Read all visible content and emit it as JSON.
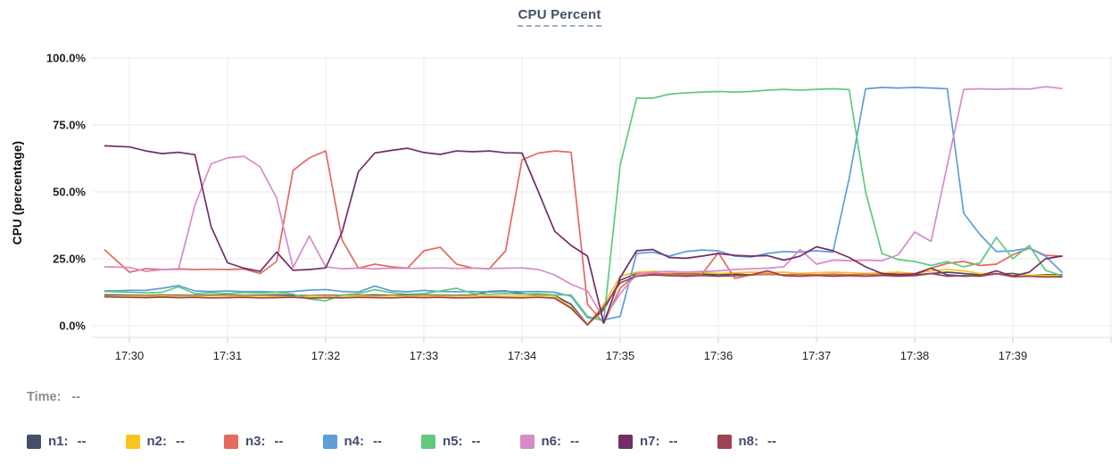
{
  "header": {
    "title": "CPU Percent",
    "time_label": "Time:",
    "time_value": "--"
  },
  "chart_data": {
    "type": "line",
    "title": "CPU Percent",
    "xlabel": "",
    "ylabel": "CPU (percentage)",
    "ylim": [
      0,
      100
    ],
    "grid": true,
    "legend_position": "bottom",
    "y_ticks": [
      {
        "value": 0,
        "label": "0.0%"
      },
      {
        "value": 25,
        "label": "25.0%"
      },
      {
        "value": 50,
        "label": "50.0%"
      },
      {
        "value": 75,
        "label": "75.0%"
      },
      {
        "value": 100,
        "label": "100.0%"
      }
    ],
    "x_ticks": [
      "17:30",
      "17:31",
      "17:32",
      "17:33",
      "17:34",
      "17:35",
      "17:36",
      "17:37",
      "17:38",
      "17:39"
    ],
    "x_offset_minutes_from_1730": [
      -0.25,
      0,
      0.167,
      0.333,
      0.5,
      0.667,
      0.833,
      1,
      1.167,
      1.333,
      1.5,
      1.667,
      1.833,
      2,
      2.167,
      2.333,
      2.5,
      2.667,
      2.833,
      3,
      3.167,
      3.333,
      3.5,
      3.667,
      3.833,
      4,
      4.167,
      4.333,
      4.5,
      4.667,
      4.833,
      5,
      5.167,
      5.333,
      5.5,
      5.667,
      5.833,
      6,
      6.167,
      6.333,
      6.5,
      6.667,
      6.833,
      7,
      7.167,
      7.333,
      7.5,
      7.667,
      7.833,
      8,
      8.167,
      8.333,
      8.5,
      8.667,
      8.833,
      9,
      9.167,
      9.333,
      9.5
    ],
    "series": [
      {
        "name": "n1",
        "label": "n1:",
        "legend_value": "--",
        "color": "#44506b",
        "values": [
          11.5,
          11.4,
          11.3,
          11.5,
          11.4,
          11.3,
          11.4,
          11.5,
          11.3,
          11.4,
          11.5,
          11.3,
          11.2,
          11.4,
          11.3,
          11.4,
          11.5,
          11.3,
          11.4,
          11.5,
          11.4,
          11.3,
          11.5,
          12.8,
          13.0,
          12.0,
          11.5,
          11.3,
          8.0,
          0.5,
          6.0,
          17.0,
          19.5,
          19.5,
          19.3,
          19.5,
          19.3,
          19.0,
          19.3,
          19.0,
          19.2,
          19.0,
          19.3,
          19.0,
          19.2,
          19.0,
          19.3,
          19.5,
          19.3,
          19.0,
          19.5,
          20.0,
          19.5,
          19.0,
          19.3,
          19.5,
          18.7,
          19.0,
          19.0
        ]
      },
      {
        "name": "n2",
        "label": "n2:",
        "legend_value": "--",
        "color": "#f8c51c",
        "values": [
          11.0,
          11.1,
          11.0,
          11.2,
          11.1,
          11.0,
          11.1,
          11.2,
          11.0,
          11.1,
          11.0,
          10.8,
          11.0,
          11.1,
          11.0,
          11.2,
          11.0,
          11.1,
          11.0,
          11.2,
          11.1,
          11.0,
          11.2,
          11.0,
          11.1,
          11.0,
          11.2,
          11.0,
          7.0,
          0.5,
          8.0,
          18.5,
          20.0,
          20.3,
          20.0,
          19.8,
          20.0,
          19.5,
          19.8,
          20.0,
          19.8,
          20.0,
          19.5,
          19.8,
          20.0,
          19.8,
          19.5,
          19.8,
          20.0,
          19.5,
          20.5,
          21.0,
          20.5,
          19.5,
          19.3,
          19.0,
          18.8,
          18.7,
          18.7
        ]
      },
      {
        "name": "n3",
        "label": "n3:",
        "legend_value": "--",
        "color": "#e4695e",
        "values": [
          28.3,
          20.0,
          21.3,
          21.0,
          21.2,
          21.0,
          21.1,
          21.0,
          21.2,
          19.5,
          24.0,
          58.0,
          62.7,
          65.3,
          32.0,
          21.5,
          23.0,
          22.0,
          21.5,
          28.0,
          29.3,
          23.0,
          21.5,
          21.3,
          28.0,
          62.0,
          64.5,
          65.3,
          64.8,
          8.0,
          1.0,
          14.0,
          19.3,
          19.5,
          19.3,
          19.0,
          19.2,
          27.3,
          17.7,
          19.0,
          19.3,
          19.0,
          19.2,
          19.0,
          19.3,
          19.0,
          19.2,
          19.0,
          19.3,
          19.5,
          21.5,
          23.3,
          24.0,
          22.5,
          23.0,
          26.5,
          29.0,
          26.3,
          26.0
        ]
      },
      {
        "name": "n4",
        "label": "n4:",
        "legend_value": "--",
        "color": "#5f9ed7",
        "values": [
          13.0,
          13.2,
          13.2,
          14.0,
          15.0,
          13.0,
          12.8,
          13.0,
          12.7,
          12.8,
          12.6,
          12.8,
          13.3,
          13.5,
          12.8,
          12.6,
          14.8,
          13.0,
          12.7,
          13.2,
          12.8,
          12.7,
          12.8,
          12.6,
          12.8,
          12.7,
          12.8,
          12.5,
          11.0,
          3.0,
          2.2,
          3.5,
          27.0,
          27.5,
          26.0,
          27.7,
          28.3,
          28.0,
          26.0,
          25.7,
          27.0,
          27.7,
          27.5,
          28.0,
          27.5,
          55.0,
          88.5,
          89.0,
          88.8,
          89.0,
          88.8,
          88.5,
          42.0,
          34.0,
          27.7,
          28.0,
          29.0,
          26.0,
          20.0
        ]
      },
      {
        "name": "n5",
        "label": "n5:",
        "legend_value": "--",
        "color": "#62c87f",
        "values": [
          12.8,
          12.5,
          12.3,
          12.5,
          14.5,
          12.0,
          12.3,
          12.0,
          12.4,
          12.2,
          12.5,
          11.8,
          10.0,
          9.3,
          11.5,
          12.0,
          13.5,
          12.3,
          11.8,
          12.0,
          13.0,
          14.0,
          12.0,
          11.7,
          12.0,
          11.8,
          12.0,
          11.5,
          11.5,
          3.5,
          1.8,
          60.0,
          85.0,
          85.0,
          86.5,
          87.0,
          87.3,
          87.5,
          87.3,
          87.5,
          88.0,
          88.3,
          88.0,
          88.3,
          88.5,
          88.2,
          50.0,
          27.0,
          24.7,
          24.0,
          22.5,
          24.0,
          22.0,
          23.5,
          33.0,
          25.0,
          30.0,
          20.7,
          18.7
        ]
      },
      {
        "name": "n6",
        "label": "n6:",
        "legend_value": "--",
        "color": "#d78bc7",
        "values": [
          22.0,
          21.8,
          20.3,
          21.0,
          21.0,
          45.0,
          60.5,
          62.7,
          63.3,
          59.3,
          47.7,
          21.7,
          33.5,
          22.0,
          21.3,
          21.5,
          21.3,
          21.5,
          21.4,
          21.5,
          21.6,
          21.4,
          21.5,
          21.4,
          21.5,
          21.6,
          21.0,
          19.0,
          15.5,
          13.0,
          2.5,
          12.0,
          19.3,
          20.0,
          20.3,
          20.0,
          20.3,
          20.5,
          21.0,
          21.3,
          21.5,
          22.0,
          28.5,
          23.0,
          24.5,
          24.3,
          24.5,
          24.3,
          26.5,
          35.0,
          31.5,
          60.0,
          88.3,
          88.5,
          88.3,
          88.5,
          88.4,
          89.3,
          88.6
        ]
      },
      {
        "name": "n7",
        "label": "n7:",
        "legend_value": "--",
        "color": "#722f68",
        "values": [
          67.2,
          66.8,
          65.3,
          64.3,
          64.8,
          63.9,
          37.0,
          23.5,
          21.5,
          20.3,
          27.5,
          20.7,
          21.0,
          21.6,
          35.0,
          57.5,
          64.5,
          65.5,
          66.3,
          64.7,
          64.0,
          65.3,
          65.0,
          65.3,
          64.6,
          64.5,
          50.0,
          35.3,
          30.0,
          26.0,
          1.0,
          18.0,
          28.0,
          28.5,
          25.5,
          25.2,
          26.0,
          27.0,
          26.3,
          26.0,
          26.2,
          24.5,
          26.0,
          29.5,
          28.0,
          25.5,
          22.0,
          19.5,
          19.0,
          19.2,
          21.5,
          19.0,
          18.5,
          18.7,
          20.5,
          18.5,
          20.0,
          25.0,
          26.0
        ]
      },
      {
        "name": "n8",
        "label": "n8:",
        "legend_value": "--",
        "color": "#9e4353",
        "values": [
          10.8,
          10.6,
          10.5,
          10.7,
          10.5,
          10.6,
          10.4,
          10.5,
          10.6,
          10.4,
          10.5,
          10.6,
          10.3,
          10.5,
          10.4,
          10.6,
          10.5,
          10.4,
          10.6,
          10.5,
          10.6,
          10.4,
          10.5,
          10.6,
          10.5,
          10.4,
          10.6,
          10.3,
          6.5,
          0.3,
          7.0,
          16.0,
          18.5,
          19.0,
          18.7,
          18.5,
          18.8,
          18.5,
          18.7,
          19.0,
          20.5,
          18.7,
          18.5,
          18.8,
          18.5,
          18.7,
          18.5,
          18.8,
          18.5,
          18.7,
          19.5,
          18.5,
          18.7,
          18.5,
          19.5,
          18.3,
          18.5,
          18.2,
          18.3
        ]
      }
    ]
  }
}
